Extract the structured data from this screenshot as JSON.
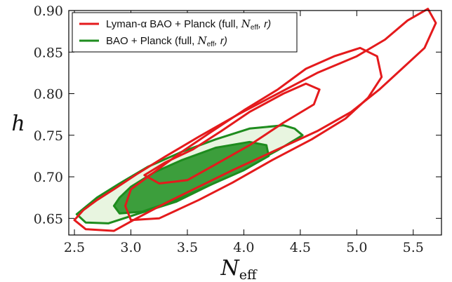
{
  "chart_data": {
    "type": "contour",
    "xlabel": "N",
    "xlabel_sub": "eff",
    "ylabel": "h",
    "xlim": [
      2.45,
      5.75
    ],
    "ylim": [
      0.63,
      0.9
    ],
    "xticks": [
      2.5,
      3.0,
      3.5,
      4.0,
      4.5,
      5.0,
      5.5
    ],
    "yticks": [
      0.65,
      0.7,
      0.75,
      0.8,
      0.85,
      0.9
    ],
    "xtick_labels": [
      "2.5",
      "3.0",
      "3.5",
      "4.0",
      "4.5",
      "5.0",
      "5.5"
    ],
    "ytick_labels": [
      "0.65",
      "0.70",
      "0.75",
      "0.80",
      "0.85",
      "0.90"
    ],
    "legend_position": "top-left",
    "series": [
      {
        "name": "Lyman-α BAO + Planck (full, N_eff, r)",
        "legend_label": "Lyman-α BAO + Planck (full, ",
        "legend_italic": "N",
        "legend_sub": "eff",
        "legend_tail": ", r)",
        "color": "#e41a1c",
        "filled": false,
        "contours": [
          {
            "level": "95%",
            "points": [
              [
                2.5,
                0.648
              ],
              [
                2.6,
                0.637
              ],
              [
                2.85,
                0.635
              ],
              [
                3.05,
                0.65
              ],
              [
                3.3,
                0.668
              ],
              [
                3.6,
                0.688
              ],
              [
                3.9,
                0.708
              ],
              [
                4.3,
                0.733
              ],
              [
                4.65,
                0.755
              ],
              [
                4.95,
                0.778
              ],
              [
                5.2,
                0.805
              ],
              [
                5.4,
                0.83
              ],
              [
                5.6,
                0.855
              ],
              [
                5.7,
                0.885
              ],
              [
                5.63,
                0.902
              ],
              [
                5.45,
                0.888
              ],
              [
                5.25,
                0.865
              ],
              [
                5.0,
                0.845
              ],
              [
                4.65,
                0.825
              ],
              [
                4.3,
                0.8
              ],
              [
                3.95,
                0.775
              ],
              [
                3.6,
                0.748
              ],
              [
                3.3,
                0.724
              ],
              [
                3.05,
                0.703
              ],
              [
                2.85,
                0.685
              ],
              [
                2.7,
                0.672
              ],
              [
                2.58,
                0.66
              ]
            ]
          },
          {
            "level": "68%",
            "points": [
              [
                2.95,
                0.665
              ],
              [
                3.0,
                0.648
              ],
              [
                3.25,
                0.65
              ],
              [
                3.6,
                0.672
              ],
              [
                3.9,
                0.693
              ],
              [
                4.25,
                0.72
              ],
              [
                4.6,
                0.745
              ],
              [
                4.9,
                0.77
              ],
              [
                5.1,
                0.795
              ],
              [
                5.22,
                0.82
              ],
              [
                5.18,
                0.845
              ],
              [
                5.03,
                0.855
              ],
              [
                4.8,
                0.845
              ],
              [
                4.55,
                0.83
              ],
              [
                4.3,
                0.805
              ],
              [
                4.0,
                0.78
              ],
              [
                3.7,
                0.753
              ],
              [
                3.45,
                0.73
              ],
              [
                3.2,
                0.705
              ],
              [
                3.0,
                0.685
              ]
            ]
          },
          {
            "level": "68%-inner",
            "points": [
              [
                3.12,
                0.702
              ],
              [
                3.25,
                0.692
              ],
              [
                3.5,
                0.696
              ],
              [
                3.75,
                0.715
              ],
              [
                4.05,
                0.738
              ],
              [
                4.35,
                0.765
              ],
              [
                4.62,
                0.787
              ],
              [
                4.67,
                0.805
              ],
              [
                4.55,
                0.812
              ],
              [
                4.35,
                0.8
              ],
              [
                4.05,
                0.778
              ],
              [
                3.8,
                0.755
              ],
              [
                3.55,
                0.733
              ],
              [
                3.3,
                0.717
              ]
            ]
          }
        ]
      },
      {
        "name": "BAO + Planck (full, N_eff, r)",
        "legend_label": "BAO + Planck (full, ",
        "legend_italic": "N",
        "legend_sub": "eff",
        "legend_tail": ", r)",
        "color": "#1e8c1e",
        "fill_outer": "#e8f5e0",
        "fill_inner": "#3c9e3c",
        "filled": true,
        "contours": [
          {
            "level": "95%",
            "points": [
              [
                2.52,
                0.655
              ],
              [
                2.6,
                0.645
              ],
              [
                2.8,
                0.644
              ],
              [
                3.05,
                0.655
              ],
              [
                3.4,
                0.67
              ],
              [
                3.7,
                0.69
              ],
              [
                4.0,
                0.71
              ],
              [
                4.3,
                0.732
              ],
              [
                4.52,
                0.75
              ],
              [
                4.45,
                0.758
              ],
              [
                4.35,
                0.762
              ],
              [
                4.05,
                0.758
              ],
              [
                3.75,
                0.745
              ],
              [
                3.45,
                0.73
              ],
              [
                3.15,
                0.712
              ],
              [
                2.9,
                0.692
              ],
              [
                2.7,
                0.675
              ]
            ]
          },
          {
            "level": "68%",
            "points": [
              [
                2.85,
                0.665
              ],
              [
                2.9,
                0.656
              ],
              [
                3.1,
                0.658
              ],
              [
                3.4,
                0.672
              ],
              [
                3.7,
                0.69
              ],
              [
                4.0,
                0.708
              ],
              [
                4.22,
                0.725
              ],
              [
                4.2,
                0.738
              ],
              [
                4.05,
                0.742
              ],
              [
                3.75,
                0.735
              ],
              [
                3.45,
                0.72
              ],
              [
                3.2,
                0.705
              ],
              [
                3.0,
                0.688
              ],
              [
                2.9,
                0.675
              ]
            ]
          }
        ]
      }
    ]
  }
}
